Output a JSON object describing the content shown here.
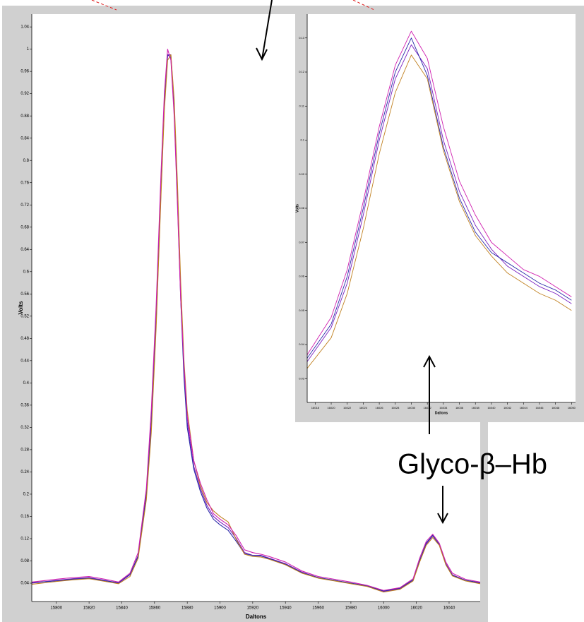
{
  "chart_data": [
    {
      "type": "line",
      "xlabel": "Daltons",
      "ylabel": "Volts",
      "annotation": "Glyco-β–Hb",
      "x": [
        15785,
        15800,
        15810,
        15820,
        15830,
        15838,
        15845,
        15850,
        15855,
        15858,
        15861,
        15864,
        15866,
        15868,
        15870,
        15872,
        15874,
        15876,
        15878,
        15880,
        15884,
        15888,
        15892,
        15896,
        15900,
        15905,
        15910,
        15915,
        15920,
        15925,
        15930,
        15940,
        15950,
        15960,
        15970,
        15980,
        15990,
        16000,
        16010,
        16018,
        16022,
        16026,
        16030,
        16034,
        16038,
        16042,
        16050,
        16059
      ],
      "series": [
        {
          "color": "#7a1fc0",
          "values": [
            0.04,
            0.045,
            0.048,
            0.05,
            0.045,
            0.04,
            0.055,
            0.09,
            0.2,
            0.33,
            0.52,
            0.76,
            0.9,
            0.99,
            0.99,
            0.9,
            0.74,
            0.56,
            0.42,
            0.33,
            0.25,
            0.21,
            0.18,
            0.16,
            0.15,
            0.14,
            0.12,
            0.095,
            0.09,
            0.09,
            0.085,
            0.075,
            0.06,
            0.05,
            0.045,
            0.04,
            0.035,
            0.025,
            0.03,
            0.045,
            0.08,
            0.11,
            0.125,
            0.11,
            0.075,
            0.055,
            0.045,
            0.04
          ]
        },
        {
          "color": "#2a2aa8",
          "values": [
            0.041,
            0.044,
            0.047,
            0.049,
            0.044,
            0.041,
            0.056,
            0.088,
            0.2,
            0.32,
            0.51,
            0.75,
            0.9,
            0.99,
            0.985,
            0.89,
            0.73,
            0.55,
            0.41,
            0.32,
            0.245,
            0.205,
            0.175,
            0.155,
            0.145,
            0.135,
            0.115,
            0.093,
            0.09,
            0.089,
            0.084,
            0.074,
            0.059,
            0.05,
            0.045,
            0.04,
            0.035,
            0.026,
            0.031,
            0.046,
            0.081,
            0.112,
            0.126,
            0.109,
            0.074,
            0.054,
            0.045,
            0.041
          ]
        },
        {
          "color": "#c08020",
          "values": [
            0.038,
            0.043,
            0.046,
            0.048,
            0.043,
            0.039,
            0.052,
            0.085,
            0.19,
            0.31,
            0.5,
            0.74,
            0.89,
            0.98,
            0.99,
            0.91,
            0.76,
            0.58,
            0.44,
            0.35,
            0.26,
            0.215,
            0.185,
            0.17,
            0.16,
            0.15,
            0.118,
            0.092,
            0.088,
            0.087,
            0.083,
            0.073,
            0.058,
            0.049,
            0.044,
            0.039,
            0.034,
            0.024,
            0.029,
            0.044,
            0.078,
            0.108,
            0.122,
            0.108,
            0.073,
            0.053,
            0.044,
            0.039
          ]
        },
        {
          "color": "#d020b0",
          "values": [
            0.042,
            0.047,
            0.05,
            0.052,
            0.047,
            0.042,
            0.058,
            0.095,
            0.21,
            0.35,
            0.54,
            0.78,
            0.92,
            1.0,
            0.98,
            0.88,
            0.72,
            0.55,
            0.43,
            0.34,
            0.26,
            0.22,
            0.19,
            0.165,
            0.155,
            0.145,
            0.125,
            0.1,
            0.095,
            0.092,
            0.088,
            0.078,
            0.062,
            0.052,
            0.047,
            0.042,
            0.036,
            0.027,
            0.032,
            0.048,
            0.085,
            0.115,
            0.128,
            0.112,
            0.078,
            0.058,
            0.047,
            0.042
          ]
        }
      ],
      "xlim": [
        15785,
        16059
      ],
      "ylim": [
        0.007,
        1.063
      ],
      "xticks": [
        15800,
        15820,
        15840,
        15860,
        15880,
        15900,
        15920,
        15940,
        15960,
        15980,
        16000,
        16020,
        16040
      ],
      "yticks": [
        0.04,
        0.08,
        0.12,
        0.16,
        0.2,
        0.24,
        0.28,
        0.32,
        0.36,
        0.4,
        0.44,
        0.48,
        0.52,
        0.56,
        0.6,
        0.64,
        0.68,
        0.72,
        0.76,
        0.8,
        0.84,
        0.88,
        0.92,
        0.96,
        1,
        1.04
      ]
    },
    {
      "type": "line",
      "xlabel": "Daltons",
      "ylabel": "Volts",
      "x": [
        16017,
        16020,
        16022,
        16024,
        16026,
        16028,
        16030,
        16032,
        16034,
        16036,
        16038,
        16040,
        16042,
        16044,
        16046,
        16048,
        16050
      ],
      "series": [
        {
          "color": "#7a1fc0",
          "values": [
            0.035,
            0.045,
            0.058,
            0.078,
            0.1,
            0.118,
            0.128,
            0.121,
            0.1,
            0.085,
            0.075,
            0.068,
            0.063,
            0.06,
            0.057,
            0.055,
            0.052
          ]
        },
        {
          "color": "#2a2aa8",
          "values": [
            0.036,
            0.046,
            0.06,
            0.08,
            0.102,
            0.12,
            0.13,
            0.119,
            0.098,
            0.083,
            0.073,
            0.067,
            0.064,
            0.061,
            0.058,
            0.056,
            0.053
          ]
        },
        {
          "color": "#c08020",
          "values": [
            0.033,
            0.042,
            0.055,
            0.074,
            0.096,
            0.114,
            0.125,
            0.118,
            0.097,
            0.082,
            0.072,
            0.066,
            0.061,
            0.058,
            0.055,
            0.053,
            0.05
          ]
        },
        {
          "color": "#d020b0",
          "values": [
            0.037,
            0.048,
            0.062,
            0.082,
            0.104,
            0.122,
            0.132,
            0.124,
            0.104,
            0.088,
            0.078,
            0.07,
            0.066,
            0.062,
            0.06,
            0.057,
            0.054
          ]
        }
      ],
      "xlim": [
        16017,
        16050.5
      ],
      "ylim": [
        0.023,
        0.137
      ],
      "xticks": [
        16018,
        16020,
        16022,
        16024,
        16026,
        16028,
        16030,
        16032,
        16034,
        16036,
        16038,
        16040,
        16042,
        16044,
        16046,
        16048,
        16050
      ],
      "yticks": [
        0.03,
        0.04,
        0.05,
        0.06,
        0.07,
        0.08,
        0.09,
        0.1,
        0.11,
        0.12,
        0.13
      ]
    }
  ]
}
